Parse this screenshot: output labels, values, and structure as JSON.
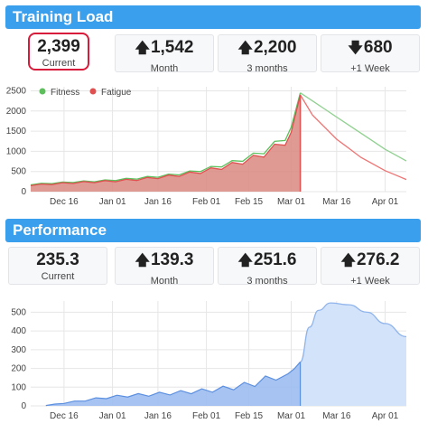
{
  "training_load": {
    "title": "Training Load",
    "stats": [
      {
        "value": "2,399",
        "label": "Current",
        "arrow": ""
      },
      {
        "value": "1,542",
        "label": "Month",
        "arrow": "🡅"
      },
      {
        "value": "2,200",
        "label": "3 months",
        "arrow": "🡅"
      },
      {
        "value": "680",
        "label": "+1 Week",
        "arrow": "🡇"
      }
    ]
  },
  "performance": {
    "title": "Performance",
    "stats": [
      {
        "value": "235.3",
        "label": "Current",
        "arrow": ""
      },
      {
        "value": "139.3",
        "label": "Month",
        "arrow": "🡅"
      },
      {
        "value": "251.6",
        "label": "3 months",
        "arrow": "🡅"
      },
      {
        "value": "276.2",
        "label": "+1 Week",
        "arrow": "🡅"
      }
    ]
  },
  "colors": {
    "header": "#3aa0ee",
    "fitness": "#5cbf5c",
    "fatigue": "#e05050",
    "fatigue_fill": "#d98a80",
    "performance": "#5b8fe0",
    "performance_fill": "#9cbcf0",
    "highlight": "#d81b3a"
  },
  "chart_data": [
    {
      "type": "area",
      "legend_placement": "top-left",
      "grid": true,
      "ylim": [
        0,
        2600
      ],
      "yticks": [
        0,
        500,
        1000,
        1500,
        2000,
        2500
      ],
      "xticks": [
        "Dec 16",
        "Jan 01",
        "Jan 16",
        "Feb 01",
        "Feb 15",
        "Mar 01",
        "Mar 16",
        "Apr 01"
      ],
      "x_start": "2014-12-05",
      "x_end": "2015-04-08",
      "current_date": "2015-03-04",
      "series": [
        {
          "name": "Fitness",
          "points": [
            [
              "2014-12-05",
              180
            ],
            [
              "2014-12-12",
              210
            ],
            [
              "2014-12-19",
              240
            ],
            [
              "2014-12-26",
              260
            ],
            [
              "2015-01-02",
              290
            ],
            [
              "2015-01-09",
              330
            ],
            [
              "2015-01-16",
              380
            ],
            [
              "2015-01-23",
              440
            ],
            [
              "2015-01-30",
              530
            ],
            [
              "2015-02-06",
              650
            ],
            [
              "2015-02-13",
              800
            ],
            [
              "2015-02-20",
              1000
            ],
            [
              "2015-02-27",
              1350
            ],
            [
              "2015-03-01",
              1700
            ],
            [
              "2015-03-04",
              2450
            ],
            [
              "2015-03-08",
              2250
            ],
            [
              "2015-03-16",
              1850
            ],
            [
              "2015-03-24",
              1450
            ],
            [
              "2015-04-01",
              1050
            ],
            [
              "2015-04-08",
              760
            ]
          ]
        },
        {
          "name": "Fatigue",
          "points": [
            [
              "2014-12-05",
              160
            ],
            [
              "2014-12-12",
              190
            ],
            [
              "2014-12-19",
              220
            ],
            [
              "2014-12-26",
              240
            ],
            [
              "2015-01-02",
              265
            ],
            [
              "2015-01-09",
              300
            ],
            [
              "2015-01-16",
              350
            ],
            [
              "2015-01-23",
              410
            ],
            [
              "2015-01-30",
              490
            ],
            [
              "2015-02-06",
              600
            ],
            [
              "2015-02-13",
              740
            ],
            [
              "2015-02-20",
              930
            ],
            [
              "2015-02-27",
              1250
            ],
            [
              "2015-03-01",
              1600
            ],
            [
              "2015-03-04",
              2399
            ],
            [
              "2015-03-08",
              1900
            ],
            [
              "2015-03-16",
              1300
            ],
            [
              "2015-03-24",
              850
            ],
            [
              "2015-04-01",
              520
            ],
            [
              "2015-04-08",
              300
            ]
          ]
        }
      ]
    },
    {
      "type": "area",
      "grid": true,
      "ylim": [
        0,
        560
      ],
      "yticks": [
        0,
        100,
        200,
        300,
        400,
        500
      ],
      "xticks": [
        "Dec 16",
        "Jan 01",
        "Jan 16",
        "Feb 01",
        "Feb 15",
        "Mar 01",
        "Mar 16",
        "Apr 01"
      ],
      "x_start": "2014-12-05",
      "x_end": "2015-04-08",
      "current_date": "2015-03-04",
      "series": [
        {
          "points": [
            [
              "2014-12-10",
              2
            ],
            [
              "2014-12-16",
              15
            ],
            [
              "2014-12-23",
              30
            ],
            [
              "2014-12-30",
              45
            ],
            [
              "2015-01-06",
              55
            ],
            [
              "2015-01-13",
              60
            ],
            [
              "2015-01-20",
              68
            ],
            [
              "2015-01-27",
              75
            ],
            [
              "2015-02-03",
              85
            ],
            [
              "2015-02-10",
              100
            ],
            [
              "2015-02-17",
              120
            ],
            [
              "2015-02-24",
              160
            ],
            [
              "2015-02-28",
              200
            ],
            [
              "2015-03-02",
              230
            ],
            [
              "2015-03-04",
              235
            ]
          ]
        },
        {
          "points": [
            [
              "2015-03-04",
              235
            ],
            [
              "2015-03-07",
              420
            ],
            [
              "2015-03-10",
              510
            ],
            [
              "2015-03-14",
              550
            ],
            [
              "2015-03-20",
              540
            ],
            [
              "2015-03-26",
              500
            ],
            [
              "2015-04-01",
              440
            ],
            [
              "2015-04-08",
              370
            ]
          ]
        }
      ]
    }
  ]
}
